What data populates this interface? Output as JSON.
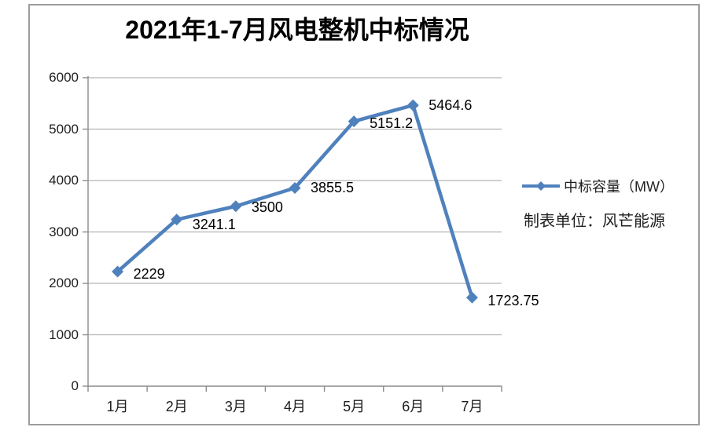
{
  "chart_data": {
    "type": "line",
    "title": "2021年1-7月风电整机中标情况",
    "categories": [
      "1月",
      "2月",
      "3月",
      "4月",
      "5月",
      "6月",
      "7月"
    ],
    "series": [
      {
        "name": "中标容量（MW）",
        "values": [
          2229,
          3241.1,
          3500,
          3855.5,
          5151.2,
          5464.6,
          1723.75
        ]
      }
    ],
    "point_labels": [
      "2229",
      "3241.1",
      "3500",
      "3855.5",
      "5151.2",
      "5464.6",
      "1723.75"
    ],
    "xlabel": "",
    "ylabel": "",
    "ylim": [
      0,
      6000
    ],
    "y_ticks": [
      "0",
      "1000",
      "2000",
      "3000",
      "4000",
      "5000",
      "6000"
    ],
    "grid": "horizontal-major",
    "legend_position": "right",
    "marker": "diamond",
    "colors": {
      "line": "#4F81BD",
      "gridline": "#b3b3b3",
      "axis": "#8c8c8c",
      "frame_border": "#9c9c9c",
      "text": "#1f1f1f"
    }
  },
  "source_note": "制表单位：风芒能源"
}
